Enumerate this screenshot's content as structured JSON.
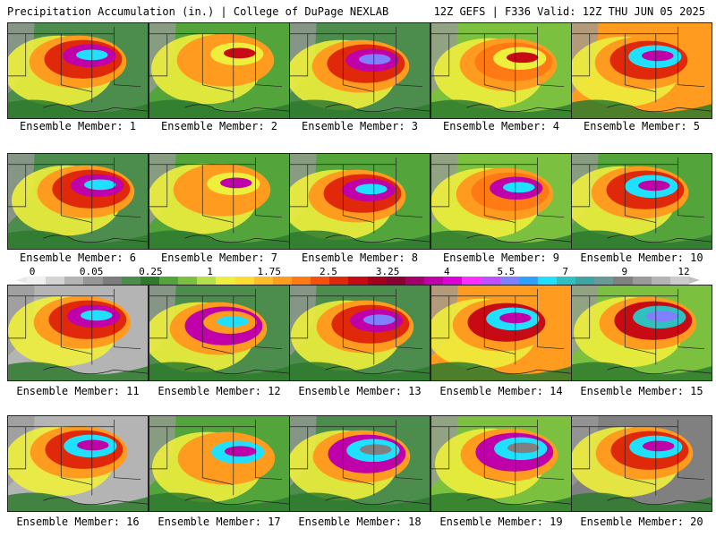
{
  "header": {
    "left": "Precipitation Accumulation (in.) | College of DuPage NEXLAB",
    "right": "12Z GEFS | F336 Valid: 12Z THU JUN 05 2025"
  },
  "legend": {
    "labels": [
      "0",
      "0.05",
      "0.25",
      "1",
      "1.75",
      "2.5",
      "3.25",
      "4",
      "5.5",
      "7",
      "9",
      "12"
    ],
    "colors": [
      "#f0f0f0",
      "#d4d4d4",
      "#b4b4b4",
      "#969696",
      "#7d7d7d",
      "#4c8c4c",
      "#2e7a2e",
      "#54a43c",
      "#7cc040",
      "#b4e04c",
      "#eeee3c",
      "#ffdc30",
      "#ffbe28",
      "#ff9c20",
      "#ff7a14",
      "#f4500e",
      "#e0280a",
      "#c80a14",
      "#a4001e",
      "#8a0030",
      "#a4006c",
      "#c000a8",
      "#e000d8",
      "#ff30ff",
      "#c050ff",
      "#8080ff",
      "#30a0ff",
      "#20e0ff",
      "#30c0c0",
      "#40a4a0",
      "#6a9a98",
      "#808080",
      "#9a9a9a",
      "#b4b4b4",
      "#cccccc"
    ],
    "arrow_left_color": "#e8e8e8",
    "arrow_right_color": "#c0c0c0"
  },
  "members": [
    {
      "label": "Ensemble Member: 1"
    },
    {
      "label": "Ensemble Member: 2"
    },
    {
      "label": "Ensemble Member: 3"
    },
    {
      "label": "Ensemble Member: 4"
    },
    {
      "label": "Ensemble Member: 5"
    },
    {
      "label": "Ensemble Member: 6"
    },
    {
      "label": "Ensemble Member: 7"
    },
    {
      "label": "Ensemble Member: 8"
    },
    {
      "label": "Ensemble Member: 9"
    },
    {
      "label": "Ensemble Member: 10"
    },
    {
      "label": "Ensemble Member: 11"
    },
    {
      "label": "Ensemble Member: 12"
    },
    {
      "label": "Ensemble Member: 13"
    },
    {
      "label": "Ensemble Member: 14"
    },
    {
      "label": "Ensemble Member: 15"
    },
    {
      "label": "Ensemble Member: 16"
    },
    {
      "label": "Ensemble Member: 17"
    },
    {
      "label": "Ensemble Member: 18"
    },
    {
      "label": "Ensemble Member: 19"
    },
    {
      "label": "Ensemble Member: 20"
    }
  ]
}
